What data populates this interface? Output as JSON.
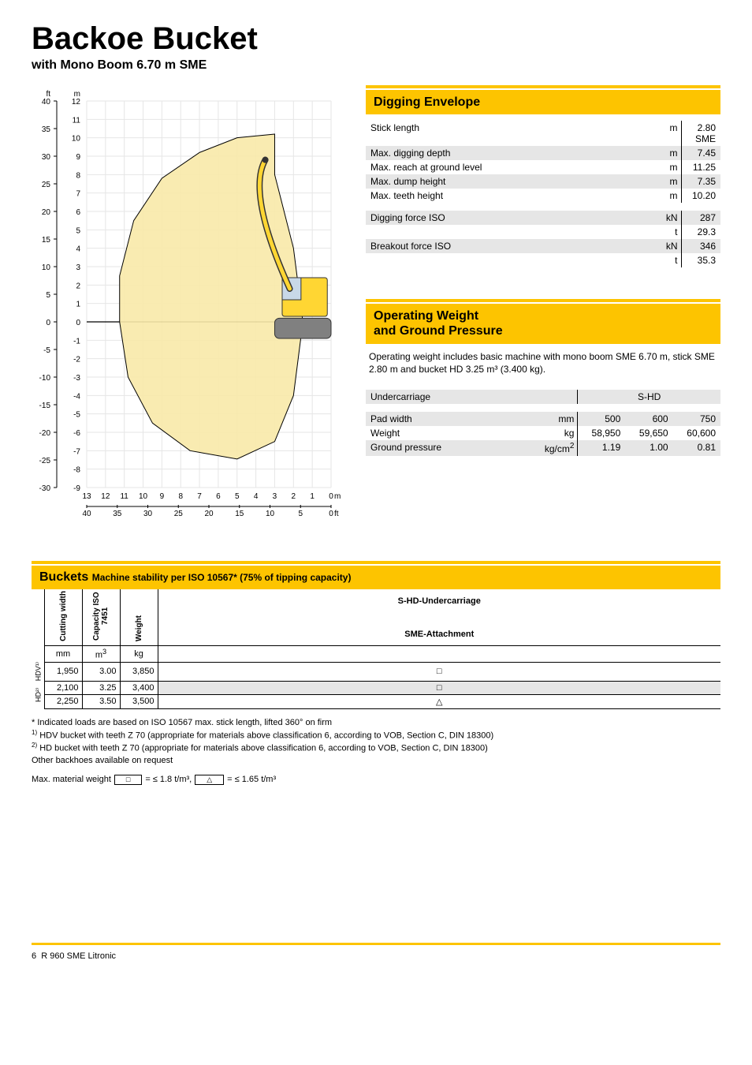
{
  "title": "Backoe Bucket",
  "subtitle": "with Mono Boom 6.70 m SME",
  "chart": {
    "y_ft": {
      "min": -30,
      "max": 40,
      "step": 5
    },
    "y_m": {
      "min": -9,
      "max": 12,
      "step": 1
    },
    "x_m": {
      "min": 0,
      "max": 13,
      "step": 1
    },
    "x_ft": {
      "min": 0,
      "max": 40,
      "step": 5
    },
    "grid_color": "#e6e6e6",
    "axis_color": "#000000",
    "envelope_fill": "#f8e9a8",
    "envelope_stroke": "#000000",
    "machine_colors": {
      "body": "#ffd633",
      "outline": "#333333",
      "tracks": "#808080"
    }
  },
  "digging_envelope": {
    "title": "Digging Envelope",
    "rows": [
      {
        "label": "Stick length",
        "unit": "m",
        "value": "2.80",
        "sub": "SME",
        "header": true
      },
      {
        "label": "Max. digging depth",
        "unit": "m",
        "value": "7.45",
        "striped": true
      },
      {
        "label": "Max. reach at ground level",
        "unit": "m",
        "value": "11.25"
      },
      {
        "label": "Max. dump height",
        "unit": "m",
        "value": "7.35",
        "striped": true
      },
      {
        "label": "Max. teeth height",
        "unit": "m",
        "value": "10.20"
      },
      {
        "spacer": true
      },
      {
        "label": "Digging force ISO",
        "unit": "kN",
        "value": "287",
        "striped": true
      },
      {
        "label": "",
        "unit": "t",
        "value": "29.3"
      },
      {
        "label": "Breakout force ISO",
        "unit": "kN",
        "value": "346",
        "striped": true
      },
      {
        "label": "",
        "unit": "t",
        "value": "35.3"
      }
    ]
  },
  "weight": {
    "title_l1": "Operating Weight",
    "title_l2": "and Ground Pressure",
    "desc": "Operating weight includes basic machine with mono boom SME 6.70 m, stick SME 2.80 m and bucket HD 3.25 m³ (3.400 kg).",
    "head_label": "Undercarriage",
    "head_group": "S-HD",
    "rows": [
      {
        "label": "Pad width",
        "unit": "mm",
        "v": [
          "500",
          "600",
          "750"
        ],
        "striped": true
      },
      {
        "label": "Weight",
        "unit": "kg",
        "v": [
          "58,950",
          "59,650",
          "60,600"
        ]
      },
      {
        "label": "Ground pressure",
        "unit": "kg/cm²",
        "v": [
          "1.19",
          "1.00",
          "0.81"
        ],
        "striped": true
      }
    ]
  },
  "buckets": {
    "title": "Buckets",
    "subtitle": "Machine stability per ISO 10567* (75% of tipping capacity)",
    "col_group1": "S-HD-Undercarriage",
    "col_group2": "SME-Attachment",
    "headers": [
      "Cutting width",
      "Capacity ISO 7451",
      "Weight"
    ],
    "units": [
      "mm",
      "m3",
      "kg"
    ],
    "side1": "HDV¹⁾",
    "side2": "HD²⁾",
    "rows": [
      {
        "side": 1,
        "cells": [
          "1,950",
          "3.00",
          "3,850"
        ],
        "mark": "□"
      },
      {
        "side": 2,
        "cells": [
          "2,100",
          "3.25",
          "3,400"
        ],
        "mark": "□",
        "striped": true
      },
      {
        "side": 2,
        "cells": [
          "2,250",
          "3.50",
          "3,500"
        ],
        "mark": "△"
      }
    ]
  },
  "footnotes": {
    "f0": "* Indicated loads are based on ISO 10567 max. stick length, lifted 360° on firm",
    "f1": "HDV bucket with teeth Z 70 (appropriate for materials above classification 6, according to VOB, Section C, DIN 18300)",
    "f2": "HD bucket with teeth Z 70 (appropriate for materials above classification 6, according to VOB, Section C, DIN 18300)",
    "f3": "Other backhoes available on request"
  },
  "legend": {
    "prefix": "Max. material weight",
    "a_sym": "□",
    "a_txt": "= ≤ 1.8 t/m³,",
    "b_sym": "△",
    "b_txt": "= ≤ 1.65 t/m³"
  },
  "footer": {
    "page": "6",
    "model": "R 960 SME Litronic"
  }
}
